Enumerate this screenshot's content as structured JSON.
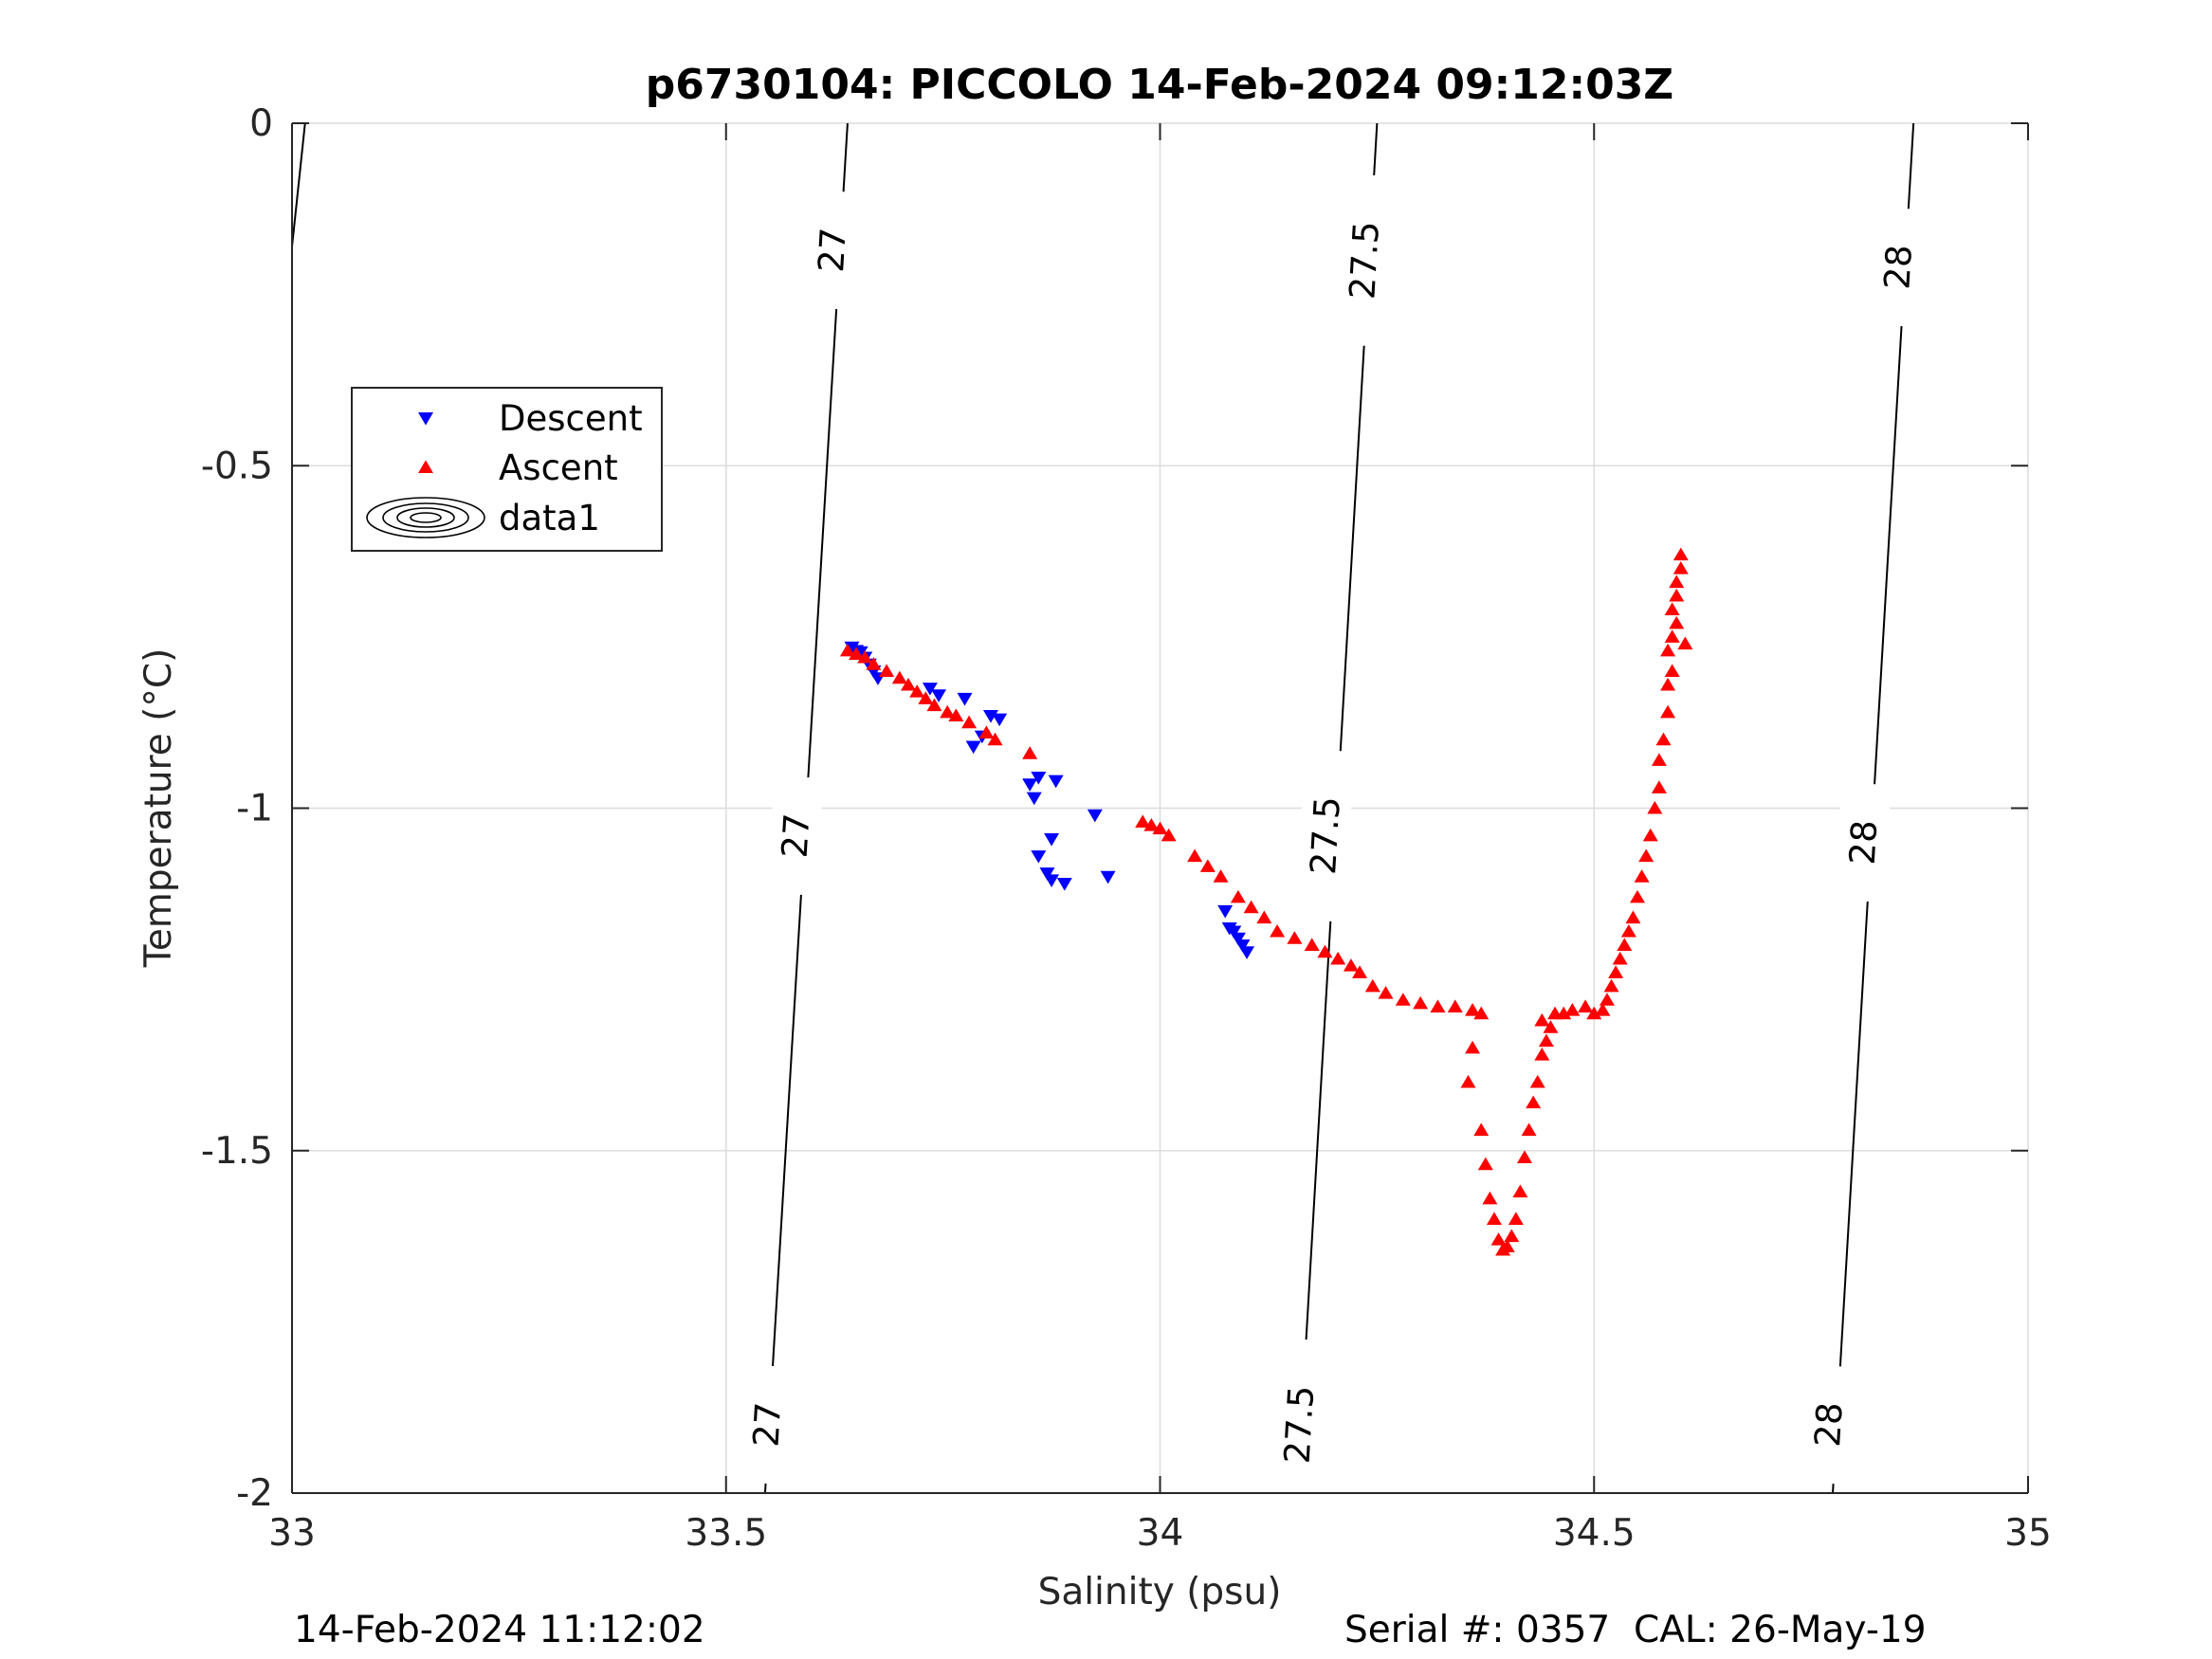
{
  "chart_data": {
    "type": "scatter",
    "title": "p6730104: PICCOLO 14-Feb-2024 09:12:03Z",
    "xlabel": "Salinity (psu)",
    "ylabel": "Temperature (°C)",
    "xlim": [
      33,
      35
    ],
    "ylim": [
      -2,
      0
    ],
    "xticks": [
      33,
      33.5,
      34,
      34.5,
      35
    ],
    "xtick_labels": [
      "33",
      "33.5",
      "34",
      "34.5",
      "35"
    ],
    "yticks": [
      -2,
      -1.5,
      -1,
      -0.5,
      0
    ],
    "ytick_labels": [
      "-2",
      "-1.5",
      "-1",
      "-0.5",
      "0"
    ],
    "grid": true,
    "legend_position": "upper-left",
    "legend": [
      "Descent",
      "Ascent",
      "data1"
    ],
    "contours": [
      {
        "label": "27",
        "points": [
          [
            33.64,
            0
          ],
          [
            33.545,
            -2
          ]
        ],
        "label_positions": [
          [
            33.622,
            -0.185
          ],
          [
            33.58,
            -1.04
          ],
          [
            33.547,
            -1.9
          ]
        ]
      },
      {
        "label": "27.5",
        "points": [
          [
            34.25,
            0
          ],
          [
            34.158,
            -2
          ]
        ],
        "label_positions": [
          [
            34.235,
            -0.2
          ],
          [
            34.19,
            -1.04
          ],
          [
            34.16,
            -1.9
          ]
        ]
      },
      {
        "label": "28",
        "points": [
          [
            34.868,
            0
          ],
          [
            34.775,
            -2
          ]
        ],
        "label_positions": [
          [
            34.85,
            -0.21
          ],
          [
            34.81,
            -1.05
          ],
          [
            34.77,
            -1.9
          ]
        ]
      },
      {
        "label": "",
        "points": [
          [
            33.015,
            0
          ],
          [
            33.0,
            -0.18
          ]
        ],
        "label_positions": []
      }
    ],
    "series": [
      {
        "name": "Descent",
        "marker": "triangle-down",
        "color": "#0000ff",
        "points": [
          [
            33.645,
            -0.765
          ],
          [
            33.65,
            -0.77
          ],
          [
            33.655,
            -0.772
          ],
          [
            33.66,
            -0.78
          ],
          [
            33.665,
            -0.79
          ],
          [
            33.67,
            -0.8
          ],
          [
            33.675,
            -0.81
          ],
          [
            33.735,
            -0.825
          ],
          [
            33.745,
            -0.835
          ],
          [
            33.775,
            -0.84
          ],
          [
            33.805,
            -0.865
          ],
          [
            33.815,
            -0.87
          ],
          [
            33.795,
            -0.895
          ],
          [
            33.785,
            -0.91
          ],
          [
            33.86,
            -0.955
          ],
          [
            33.85,
            -0.965
          ],
          [
            33.88,
            -0.96
          ],
          [
            33.855,
            -0.985
          ],
          [
            33.925,
            -1.01
          ],
          [
            33.875,
            -1.045
          ],
          [
            33.86,
            -1.07
          ],
          [
            33.87,
            -1.095
          ],
          [
            33.875,
            -1.105
          ],
          [
            33.89,
            -1.11
          ],
          [
            33.94,
            -1.1
          ],
          [
            34.075,
            -1.15
          ],
          [
            34.08,
            -1.175
          ],
          [
            34.085,
            -1.18
          ],
          [
            34.09,
            -1.19
          ],
          [
            34.095,
            -1.2
          ],
          [
            34.1,
            -1.21
          ]
        ]
      },
      {
        "name": "Ascent",
        "marker": "triangle-up",
        "color": "#ff0000",
        "points": [
          [
            33.64,
            -0.77
          ],
          [
            33.65,
            -0.775
          ],
          [
            33.66,
            -0.78
          ],
          [
            33.67,
            -0.79
          ],
          [
            33.685,
            -0.8
          ],
          [
            33.7,
            -0.81
          ],
          [
            33.71,
            -0.82
          ],
          [
            33.72,
            -0.83
          ],
          [
            33.73,
            -0.84
          ],
          [
            33.74,
            -0.85
          ],
          [
            33.755,
            -0.86
          ],
          [
            33.765,
            -0.865
          ],
          [
            33.78,
            -0.875
          ],
          [
            33.8,
            -0.89
          ],
          [
            33.81,
            -0.9
          ],
          [
            33.85,
            -0.92
          ],
          [
            33.98,
            -1.02
          ],
          [
            33.99,
            -1.025
          ],
          [
            34.0,
            -1.03
          ],
          [
            34.01,
            -1.04
          ],
          [
            34.04,
            -1.07
          ],
          [
            34.055,
            -1.085
          ],
          [
            34.07,
            -1.1
          ],
          [
            34.09,
            -1.13
          ],
          [
            34.105,
            -1.145
          ],
          [
            34.12,
            -1.16
          ],
          [
            34.135,
            -1.18
          ],
          [
            34.155,
            -1.19
          ],
          [
            34.175,
            -1.2
          ],
          [
            34.19,
            -1.21
          ],
          [
            34.205,
            -1.22
          ],
          [
            34.22,
            -1.23
          ],
          [
            34.23,
            -1.24
          ],
          [
            34.245,
            -1.26
          ],
          [
            34.26,
            -1.27
          ],
          [
            34.28,
            -1.28
          ],
          [
            34.3,
            -1.285
          ],
          [
            34.32,
            -1.29
          ],
          [
            34.34,
            -1.29
          ],
          [
            34.36,
            -1.295
          ],
          [
            34.37,
            -1.3
          ],
          [
            34.36,
            -1.35
          ],
          [
            34.355,
            -1.4
          ],
          [
            34.37,
            -1.47
          ],
          [
            34.375,
            -1.52
          ],
          [
            34.38,
            -1.57
          ],
          [
            34.385,
            -1.6
          ],
          [
            34.39,
            -1.63
          ],
          [
            34.395,
            -1.645
          ],
          [
            34.4,
            -1.64
          ],
          [
            34.405,
            -1.625
          ],
          [
            34.41,
            -1.6
          ],
          [
            34.415,
            -1.56
          ],
          [
            34.42,
            -1.51
          ],
          [
            34.425,
            -1.47
          ],
          [
            34.43,
            -1.43
          ],
          [
            34.435,
            -1.4
          ],
          [
            34.44,
            -1.36
          ],
          [
            34.445,
            -1.34
          ],
          [
            34.45,
            -1.32
          ],
          [
            34.44,
            -1.31
          ],
          [
            34.455,
            -1.3
          ],
          [
            34.465,
            -1.3
          ],
          [
            34.475,
            -1.295
          ],
          [
            34.49,
            -1.29
          ],
          [
            34.5,
            -1.3
          ],
          [
            34.51,
            -1.295
          ],
          [
            34.515,
            -1.28
          ],
          [
            34.52,
            -1.26
          ],
          [
            34.525,
            -1.24
          ],
          [
            34.53,
            -1.22
          ],
          [
            34.535,
            -1.2
          ],
          [
            34.54,
            -1.18
          ],
          [
            34.545,
            -1.16
          ],
          [
            34.55,
            -1.13
          ],
          [
            34.555,
            -1.1
          ],
          [
            34.56,
            -1.07
          ],
          [
            34.565,
            -1.04
          ],
          [
            34.57,
            -1.0
          ],
          [
            34.575,
            -0.97
          ],
          [
            34.575,
            -0.93
          ],
          [
            34.58,
            -0.9
          ],
          [
            34.585,
            -0.86
          ],
          [
            34.585,
            -0.82
          ],
          [
            34.59,
            -0.8
          ],
          [
            34.585,
            -0.77
          ],
          [
            34.59,
            -0.75
          ],
          [
            34.595,
            -0.73
          ],
          [
            34.59,
            -0.71
          ],
          [
            34.595,
            -0.69
          ],
          [
            34.595,
            -0.67
          ],
          [
            34.6,
            -0.65
          ],
          [
            34.6,
            -0.63
          ],
          [
            34.605,
            -0.76
          ]
        ]
      }
    ]
  },
  "footer": {
    "left": "14-Feb-2024 11:12:02",
    "right": "Serial #: 0357  CAL: 26-May-19"
  }
}
